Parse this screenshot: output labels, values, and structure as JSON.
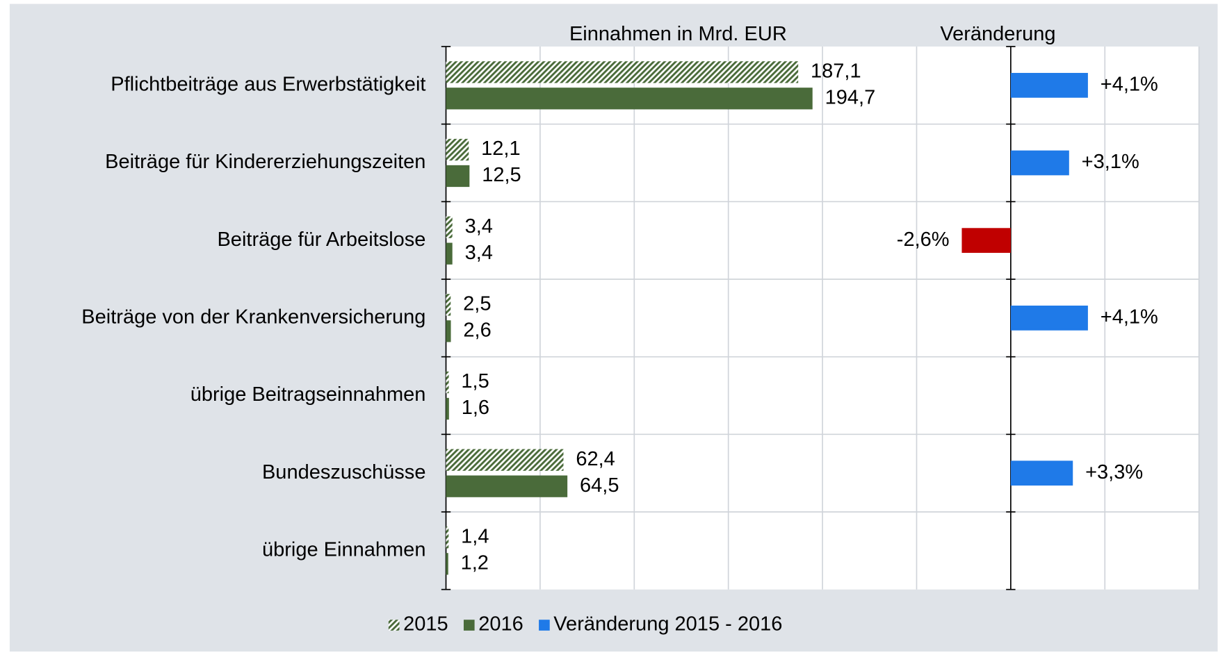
{
  "chart_data": {
    "type": "bar",
    "orientation": "horizontal",
    "title": "Einnahmen in Mrd. EUR",
    "y2_title": "Veränderung",
    "categories": [
      "Pflichtbeiträge aus Erwerbstätigkeit",
      "Beiträge für Kindererziehungszeiten",
      "Beiträge für Arbeitslose",
      "Beiträge von der Krankenversicherung",
      "übrige Beitragseinnahmen",
      "Bundeszuschüsse",
      "übrige Einnahmen"
    ],
    "series": [
      {
        "name": "2015",
        "color": "#4a6b3a",
        "hatch": true,
        "values": [
          187.1,
          12.1,
          3.4,
          2.5,
          1.5,
          62.4,
          1.4
        ],
        "value_labels": [
          "187,1",
          "12,1",
          "3,4",
          "2,5",
          "1,5",
          "62,4",
          "1,4"
        ]
      },
      {
        "name": "2016",
        "color": "#4a6b3a",
        "values": [
          194.7,
          12.5,
          3.4,
          2.6,
          1.6,
          64.5,
          1.2
        ],
        "value_labels": [
          "194,7",
          "12,5",
          "3,4",
          "2,6",
          "1,6",
          "64,5",
          "1,2"
        ]
      },
      {
        "name": "Veränderung 2015 - 2016",
        "color": "#1f7ae8",
        "negative_color": "#c00000",
        "axis": "y2",
        "values": [
          4.1,
          3.1,
          -2.6,
          4.1,
          null,
          3.3,
          null
        ],
        "value_labels": [
          "+4,1%",
          "+3,1%",
          "-2,6%",
          "+4,1%",
          null,
          "+3,3%",
          null
        ]
      }
    ],
    "xlim": [
      0,
      400
    ],
    "xticks": [
      0,
      50,
      100,
      150,
      200,
      250,
      300,
      350,
      400
    ],
    "y2lim": [
      -30,
      10
    ],
    "grid": true,
    "legend": "bottom"
  }
}
